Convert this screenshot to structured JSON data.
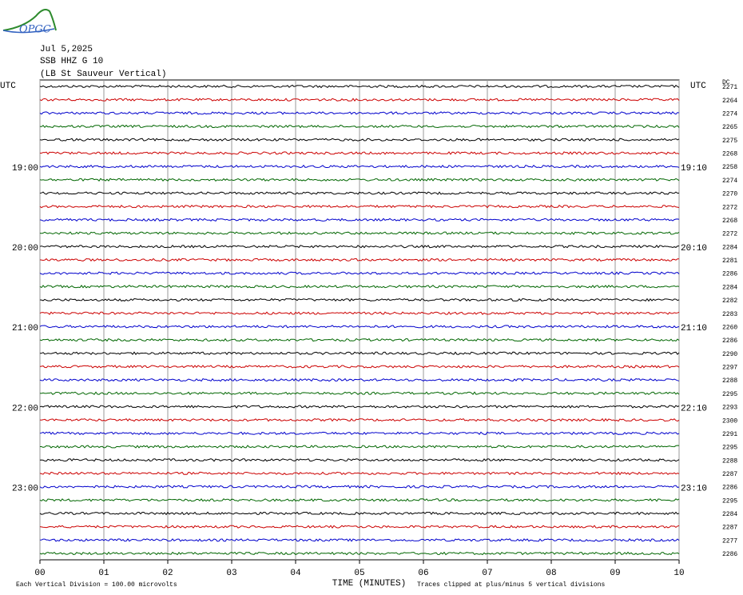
{
  "chart_data": {
    "type": "helicorder",
    "logo": "OPGC",
    "title_lines": [
      "Jul 5,2025",
      "SSB HHZ G 10",
      "(LB  St Sauveur Vertical)"
    ],
    "left_header": "UTC",
    "right_header": "UTC",
    "dc_header": "DC",
    "xlabel": "TIME (MINUTES)",
    "footer_left": "Each Vertical Division =  100.00 microvolts",
    "footer_right": "Traces clipped at plus/minus 5 vertical divisions",
    "xlim": [
      0,
      10
    ],
    "xticks": [
      {
        "value": 0,
        "label": "00"
      },
      {
        "value": 1,
        "label": "01"
      },
      {
        "value": 2,
        "label": "02"
      },
      {
        "value": 3,
        "label": "03"
      },
      {
        "value": 4,
        "label": "04"
      },
      {
        "value": 5,
        "label": "05"
      },
      {
        "value": 6,
        "label": "06"
      },
      {
        "value": 7,
        "label": "07"
      },
      {
        "value": 8,
        "label": "08"
      },
      {
        "value": 9,
        "label": "09"
      },
      {
        "value": 10,
        "label": "10"
      }
    ],
    "grid": true,
    "trace_colors": [
      "#000000",
      "#cc0000",
      "#0000cc",
      "#006600"
    ],
    "left_labels": [
      null,
      null,
      null,
      null,
      null,
      null,
      "19:00",
      null,
      null,
      null,
      null,
      null,
      "20:00",
      null,
      null,
      null,
      null,
      null,
      "21:00",
      null,
      null,
      null,
      null,
      null,
      "22:00",
      null,
      null,
      null,
      null,
      null,
      "23:00",
      null,
      null,
      null,
      null,
      null
    ],
    "right_labels": [
      null,
      null,
      null,
      null,
      null,
      null,
      "19:10",
      null,
      null,
      null,
      null,
      null,
      "20:10",
      null,
      null,
      null,
      null,
      null,
      "21:10",
      null,
      null,
      null,
      null,
      null,
      "22:10",
      null,
      null,
      null,
      null,
      null,
      "23:10",
      null,
      null,
      null,
      null,
      null
    ],
    "dc": [
      2271,
      2264,
      2274,
      2265,
      2275,
      2268,
      2258,
      2274,
      2270,
      2272,
      2268,
      2272,
      2284,
      2281,
      2286,
      2284,
      2282,
      2283,
      2260,
      2286,
      2290,
      2297,
      2288,
      2295,
      2293,
      2300,
      2291,
      2295,
      2288,
      2287,
      2286,
      2295,
      2284,
      2287,
      2277,
      2286
    ]
  }
}
